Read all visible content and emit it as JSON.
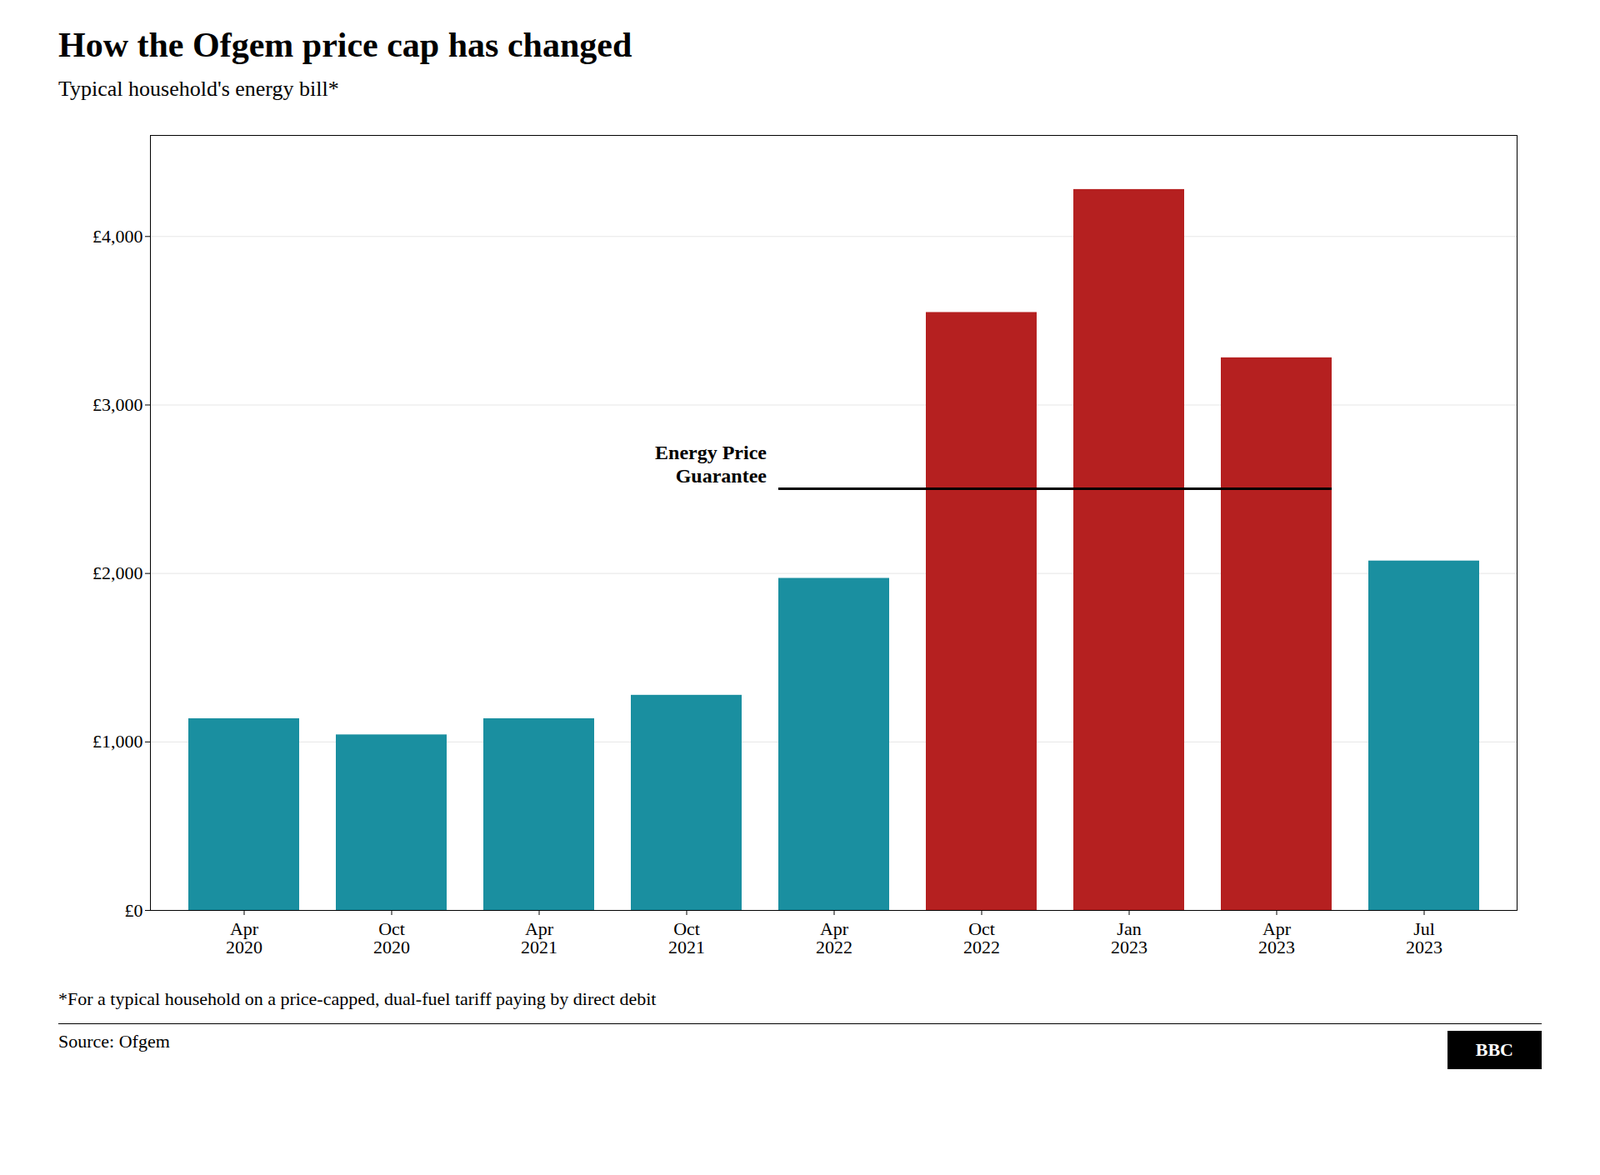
{
  "chart_data": {
    "type": "bar",
    "title": "How the Ofgem price cap has changed",
    "subtitle": "Typical household's energy bill*",
    "footnote": "*For a typical household on a price-capped, dual-fuel tariff paying by direct debit",
    "source": "Source: Ofgem",
    "logo": "BBC",
    "categories": [
      "Apr\n2020",
      "Oct\n2020",
      "Apr\n2021",
      "Oct\n2021",
      "Apr\n2022",
      "Oct\n2022",
      "Jan\n2023",
      "Apr\n2023",
      "Jul\n2023"
    ],
    "values": [
      1138,
      1042,
      1138,
      1277,
      1971,
      3549,
      4279,
      3280,
      2074
    ],
    "colors": [
      "#1a8fa0",
      "#1a8fa0",
      "#1a8fa0",
      "#1a8fa0",
      "#1a8fa0",
      "#b52020",
      "#b52020",
      "#b52020",
      "#1a8fa0"
    ],
    "ylim": [
      0,
      4600
    ],
    "yticks": [
      {
        "value": 0,
        "label": "£0"
      },
      {
        "value": 1000,
        "label": "£1,000"
      },
      {
        "value": 2000,
        "label": "£2,000"
      },
      {
        "value": 3000,
        "label": "£3,000"
      },
      {
        "value": 4000,
        "label": "£4,000"
      }
    ],
    "grid": true,
    "annotations": [
      {
        "text": "Energy Price\nGuarantee",
        "y": 2500,
        "x_start": "Apr\n2022",
        "x_end": "Apr\n2023"
      }
    ]
  }
}
